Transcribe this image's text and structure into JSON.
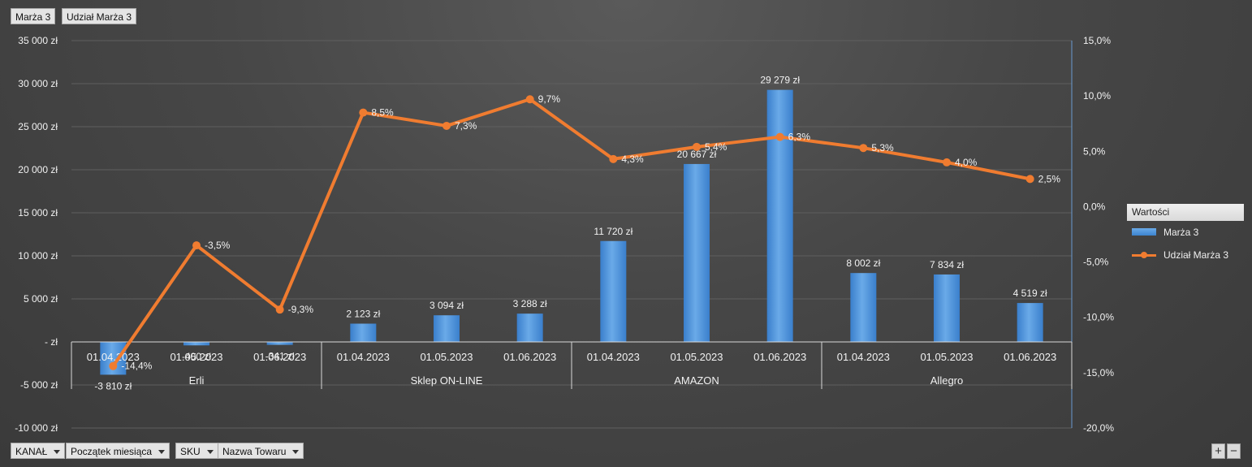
{
  "top_buttons": [
    "Marża 3",
    "Udział Marża 3"
  ],
  "filter_buttons": [
    "KANAŁ",
    "Początek miesiąca",
    "SKU",
    "Nazwa Towaru"
  ],
  "legend": {
    "title": "Wartości",
    "items": [
      {
        "label": "Marża 3",
        "kind": "bar"
      },
      {
        "label": "Udział Marża 3",
        "kind": "line"
      }
    ]
  },
  "zoom": {
    "plus": "+",
    "minus": "−"
  },
  "colors": {
    "bar": "#4a90d9",
    "line": "#f07c30"
  },
  "chart_data": {
    "type": "bar+line",
    "groups": [
      "Erli",
      "Sklep ON-LINE",
      "AMAZON",
      "Allegro"
    ],
    "categories": [
      "01.04.2023",
      "01.05.2023",
      "01.06.2023",
      "01.04.2023",
      "01.05.2023",
      "01.06.2023",
      "01.04.2023",
      "01.05.2023",
      "01.06.2023",
      "01.04.2023",
      "01.05.2023",
      "01.06.2023"
    ],
    "series": [
      {
        "name": "Marża 3",
        "type": "bar",
        "axis": "left",
        "values": [
          -3810,
          -400,
          -341,
          2123,
          3094,
          3288,
          11720,
          20667,
          29279,
          8002,
          7834,
          4519
        ],
        "labels": [
          "-3 810 zł",
          "-400 zł",
          "-341 zł",
          "2 123 zł",
          "3 094 zł",
          "3 288 zł",
          "11 720 zł",
          "20 667 zł",
          "29 279 zł",
          "8 002 zł",
          "7 834 zł",
          "4 519 zł"
        ]
      },
      {
        "name": "Udział Marża 3",
        "type": "line",
        "axis": "right",
        "values": [
          -14.4,
          -3.5,
          -9.3,
          8.5,
          7.3,
          9.7,
          4.3,
          5.4,
          6.3,
          5.3,
          4.0,
          2.5
        ],
        "labels": [
          "-14,4%",
          "-3,5%",
          "-9,3%",
          "8,5%",
          "7,3%",
          "9,7%",
          "4,3%",
          "5,4%",
          "6,3%",
          "5,3%",
          "4,0%",
          "2,5%"
        ]
      }
    ],
    "y_left": {
      "min": -10000,
      "max": 35000,
      "step": 5000,
      "tick_labels": [
        "-10 000 zł",
        "-5 000 zł",
        "-   zł",
        "5 000 zł",
        "10 000 zł",
        "15 000 zł",
        "20 000 zł",
        "25 000 zł",
        "30 000 zł",
        "35 000 zł"
      ]
    },
    "y_right": {
      "min": -20,
      "max": 15,
      "step": 5,
      "tick_labels": [
        "-20,0%",
        "-15,0%",
        "-10,0%",
        "-5,0%",
        "0,0%",
        "5,0%",
        "10,0%",
        "15,0%"
      ]
    },
    "grid": true
  }
}
